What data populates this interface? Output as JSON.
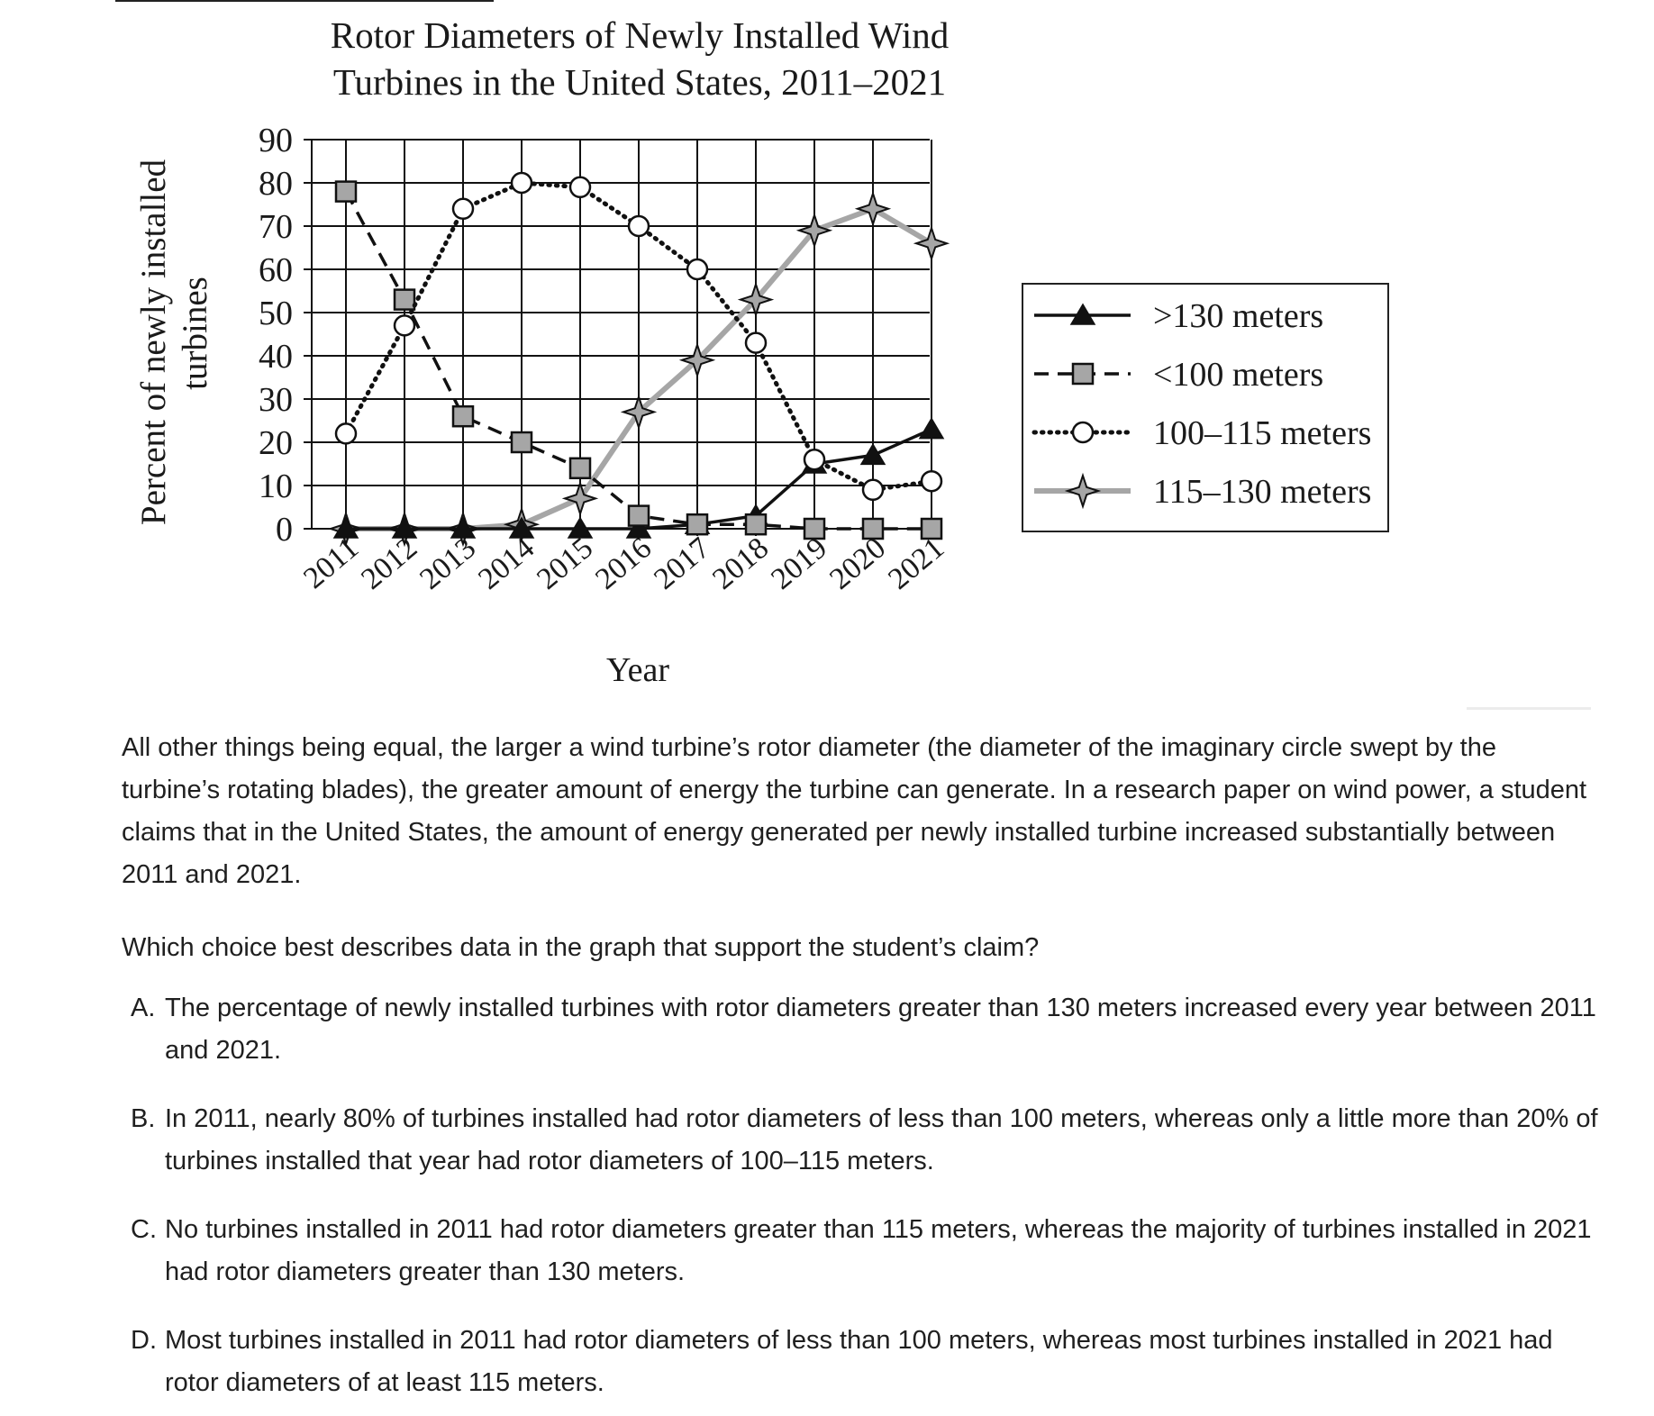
{
  "chart_data": {
    "type": "line",
    "title": "Rotor Diameters of Newly Installed Wind Turbines in the United States, 2011–2021",
    "title_lines": [
      "Rotor Diameters of Newly Installed Wind",
      "Turbines in the United States, 2011–2021"
    ],
    "xlabel": "Year",
    "ylabel_lines": [
      "Percent of newly installed",
      "turbines"
    ],
    "categories": [
      "2011",
      "2012",
      "2013",
      "2014",
      "2015",
      "2016",
      "2017",
      "2018",
      "2019",
      "2020",
      "2021"
    ],
    "yticks": [
      0,
      10,
      20,
      30,
      40,
      50,
      60,
      70,
      80,
      90
    ],
    "ylim": [
      0,
      90
    ],
    "grid": true,
    "legend_position": "right",
    "series": [
      {
        "name": ">130 meters",
        "marker": "filled-triangle",
        "line": "solid-black",
        "color": "#111111",
        "values": [
          0,
          0,
          0,
          0,
          0,
          0,
          1,
          3,
          15,
          17,
          23
        ]
      },
      {
        "name": "<100 meters",
        "marker": "gray-square",
        "line": "dashed-black",
        "color": "#111111",
        "values": [
          78,
          53,
          26,
          20,
          14,
          3,
          1,
          1,
          0,
          0,
          0
        ]
      },
      {
        "name": "100–115 meters",
        "marker": "open-circle",
        "line": "dotted-black",
        "color": "#111111",
        "values": [
          22,
          47,
          74,
          80,
          79,
          70,
          60,
          43,
          16,
          9,
          11
        ]
      },
      {
        "name": "115–130 meters",
        "marker": "gray-star",
        "line": "solid-gray",
        "color": "#a6a6a6",
        "values": [
          0,
          0,
          0,
          1,
          7,
          27,
          39,
          53,
          69,
          74,
          66
        ]
      }
    ]
  },
  "colors": {
    "marker_fill_gray": "#a6a6a6",
    "line_gray": "#a6a6a6",
    "ink": "#111111"
  },
  "question": {
    "passage": "All other things being equal, the larger a wind turbine’s rotor diameter (the diameter of the imaginary circle swept by the turbine’s rotating blades), the greater amount of energy the turbine can generate. In a research paper on wind power, a student claims that in the United States, the amount of energy generated per newly installed turbine increased substantially between 2011 and 2021.",
    "prompt": "Which choice best describes data in the graph that support the student’s claim?",
    "options": [
      {
        "letter": "A.",
        "text": "The percentage of newly installed turbines with rotor diameters greater than 130 meters increased every year between 2011 and 2021."
      },
      {
        "letter": "B.",
        "text": "In 2011, nearly 80% of turbines installed had rotor diameters of less than 100 meters, whereas only a little more than 20% of turbines installed that year had rotor diameters of 100–115 meters."
      },
      {
        "letter": "C.",
        "text": "No turbines installed in 2011 had rotor diameters greater than 115 meters, whereas the majority of turbines installed in 2021 had rotor diameters greater than 130 meters."
      },
      {
        "letter": "D.",
        "text": "Most turbines installed in 2011 had rotor diameters of less than 100 meters, whereas most turbines installed in 2021 had rotor diameters of at least 115 meters."
      }
    ]
  }
}
